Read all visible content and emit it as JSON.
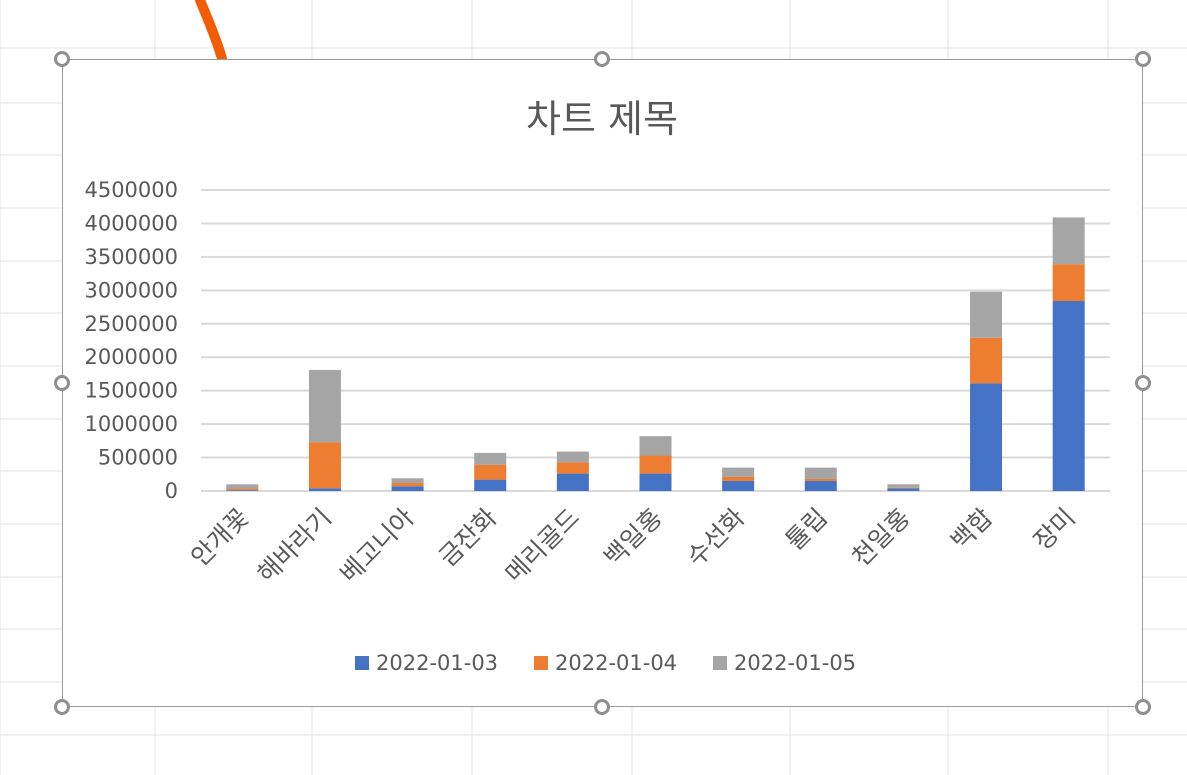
{
  "chart_data": {
    "type": "bar",
    "stacked": true,
    "title": "차트 제목",
    "categories": [
      "안개꽃",
      "해바라기",
      "베고니아",
      "금잔화",
      "메리골드",
      "백일홍",
      "수선화",
      "튤립",
      "천일홍",
      "백합",
      "장미"
    ],
    "series": [
      {
        "name": "2022-01-03",
        "color": "#4472C4",
        "values": [
          10000,
          40000,
          70000,
          170000,
          260000,
          260000,
          150000,
          150000,
          40000,
          1610000,
          2840000
        ]
      },
      {
        "name": "2022-01-04",
        "color": "#ED7D31",
        "values": [
          20000,
          690000,
          50000,
          220000,
          170000,
          270000,
          60000,
          30000,
          10000,
          680000,
          550000
        ]
      },
      {
        "name": "2022-01-05",
        "color": "#A5A5A5",
        "values": [
          70000,
          1080000,
          70000,
          180000,
          160000,
          290000,
          140000,
          170000,
          50000,
          690000,
          700000
        ]
      }
    ],
    "ylim": [
      0,
      4500000
    ],
    "yticks": [
      0,
      500000,
      1000000,
      1500000,
      2000000,
      2500000,
      3000000,
      3500000,
      4000000,
      4500000
    ],
    "ytick_labels": [
      "0",
      "500000",
      "1000000",
      "1500000",
      "2000000",
      "2500000",
      "3000000",
      "3500000",
      "4000000",
      "4500000"
    ],
    "grid": true,
    "legend": "bottom",
    "xlabel": "",
    "ylabel": ""
  },
  "colors": {
    "grid": "#d9d9d9",
    "text": "#595959",
    "frame": "#9a9a9a",
    "pen": "#f25c05"
  }
}
